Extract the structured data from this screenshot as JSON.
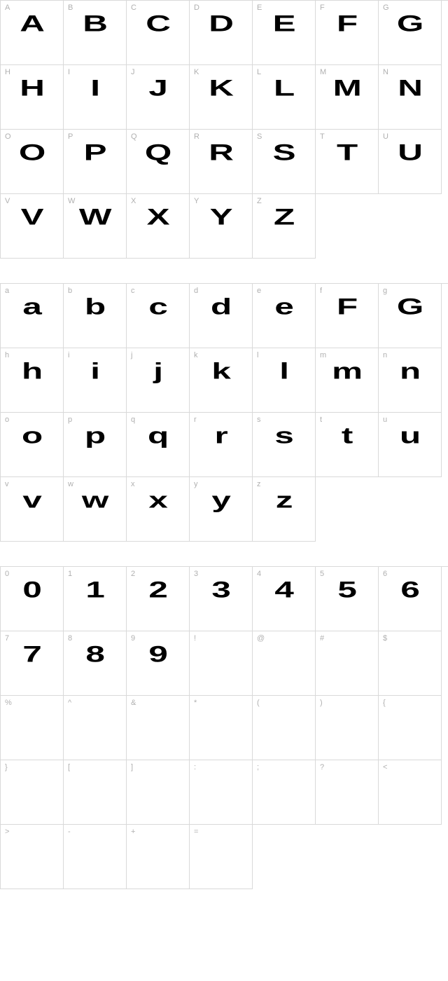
{
  "colors": {
    "border": "#d9d9d9",
    "label": "#b0b0b0",
    "glyph": "#000000",
    "background": "#ffffff"
  },
  "cell": {
    "width": 90,
    "height": 92
  },
  "sections": [
    {
      "name": "uppercase",
      "cells": [
        {
          "label": "A",
          "glyph": "A"
        },
        {
          "label": "B",
          "glyph": "B"
        },
        {
          "label": "C",
          "glyph": "C"
        },
        {
          "label": "D",
          "glyph": "D"
        },
        {
          "label": "E",
          "glyph": "E"
        },
        {
          "label": "F",
          "glyph": "F"
        },
        {
          "label": "G",
          "glyph": "G"
        },
        {
          "label": "H",
          "glyph": "H"
        },
        {
          "label": "I",
          "glyph": "I"
        },
        {
          "label": "J",
          "glyph": "J"
        },
        {
          "label": "K",
          "glyph": "K"
        },
        {
          "label": "L",
          "glyph": "L"
        },
        {
          "label": "M",
          "glyph": "M"
        },
        {
          "label": "N",
          "glyph": "N"
        },
        {
          "label": "O",
          "glyph": "O"
        },
        {
          "label": "P",
          "glyph": "P"
        },
        {
          "label": "Q",
          "glyph": "Q"
        },
        {
          "label": "R",
          "glyph": "R"
        },
        {
          "label": "S",
          "glyph": "S"
        },
        {
          "label": "T",
          "glyph": "T"
        },
        {
          "label": "U",
          "glyph": "U"
        },
        {
          "label": "V",
          "glyph": "V"
        },
        {
          "label": "W",
          "glyph": "W"
        },
        {
          "label": "X",
          "glyph": "X"
        },
        {
          "label": "Y",
          "glyph": "Y"
        },
        {
          "label": "Z",
          "glyph": "Z"
        }
      ]
    },
    {
      "name": "lowercase",
      "cells": [
        {
          "label": "a",
          "glyph": "a"
        },
        {
          "label": "b",
          "glyph": "b"
        },
        {
          "label": "c",
          "glyph": "c"
        },
        {
          "label": "d",
          "glyph": "d"
        },
        {
          "label": "e",
          "glyph": "e"
        },
        {
          "label": "f",
          "glyph": "F"
        },
        {
          "label": "g",
          "glyph": "G"
        },
        {
          "label": "h",
          "glyph": "h"
        },
        {
          "label": "i",
          "glyph": "i"
        },
        {
          "label": "j",
          "glyph": "j"
        },
        {
          "label": "k",
          "glyph": "k"
        },
        {
          "label": "l",
          "glyph": "l"
        },
        {
          "label": "m",
          "glyph": "m"
        },
        {
          "label": "n",
          "glyph": "n"
        },
        {
          "label": "o",
          "glyph": "o"
        },
        {
          "label": "p",
          "glyph": "p"
        },
        {
          "label": "q",
          "glyph": "q"
        },
        {
          "label": "r",
          "glyph": "r"
        },
        {
          "label": "s",
          "glyph": "s"
        },
        {
          "label": "t",
          "glyph": "t"
        },
        {
          "label": "u",
          "glyph": "u"
        },
        {
          "label": "v",
          "glyph": "v"
        },
        {
          "label": "w",
          "glyph": "w"
        },
        {
          "label": "x",
          "glyph": "x"
        },
        {
          "label": "y",
          "glyph": "y"
        },
        {
          "label": "z",
          "glyph": "z"
        }
      ]
    },
    {
      "name": "numbers-symbols",
      "cells": [
        {
          "label": "0",
          "glyph": "0"
        },
        {
          "label": "1",
          "glyph": "1"
        },
        {
          "label": "2",
          "glyph": "2"
        },
        {
          "label": "3",
          "glyph": "3"
        },
        {
          "label": "4",
          "glyph": "4"
        },
        {
          "label": "5",
          "glyph": "5"
        },
        {
          "label": "6",
          "glyph": "6"
        },
        {
          "label": "7",
          "glyph": "7"
        },
        {
          "label": "8",
          "glyph": "8"
        },
        {
          "label": "9",
          "glyph": "9"
        },
        {
          "label": "!",
          "glyph": ""
        },
        {
          "label": "@",
          "glyph": ""
        },
        {
          "label": "#",
          "glyph": ""
        },
        {
          "label": "$",
          "glyph": ""
        },
        {
          "label": "%",
          "glyph": ""
        },
        {
          "label": "^",
          "glyph": ""
        },
        {
          "label": "&",
          "glyph": ""
        },
        {
          "label": "*",
          "glyph": ""
        },
        {
          "label": "(",
          "glyph": ""
        },
        {
          "label": ")",
          "glyph": ""
        },
        {
          "label": "{",
          "glyph": ""
        },
        {
          "label": "}",
          "glyph": ""
        },
        {
          "label": "[",
          "glyph": ""
        },
        {
          "label": "]",
          "glyph": ""
        },
        {
          "label": ":",
          "glyph": ""
        },
        {
          "label": ";",
          "glyph": ""
        },
        {
          "label": "?",
          "glyph": ""
        },
        {
          "label": "<",
          "glyph": ""
        },
        {
          "label": ">",
          "glyph": ""
        },
        {
          "label": "-",
          "glyph": ""
        },
        {
          "label": "+",
          "glyph": ""
        },
        {
          "label": "=",
          "glyph": ""
        }
      ]
    }
  ]
}
